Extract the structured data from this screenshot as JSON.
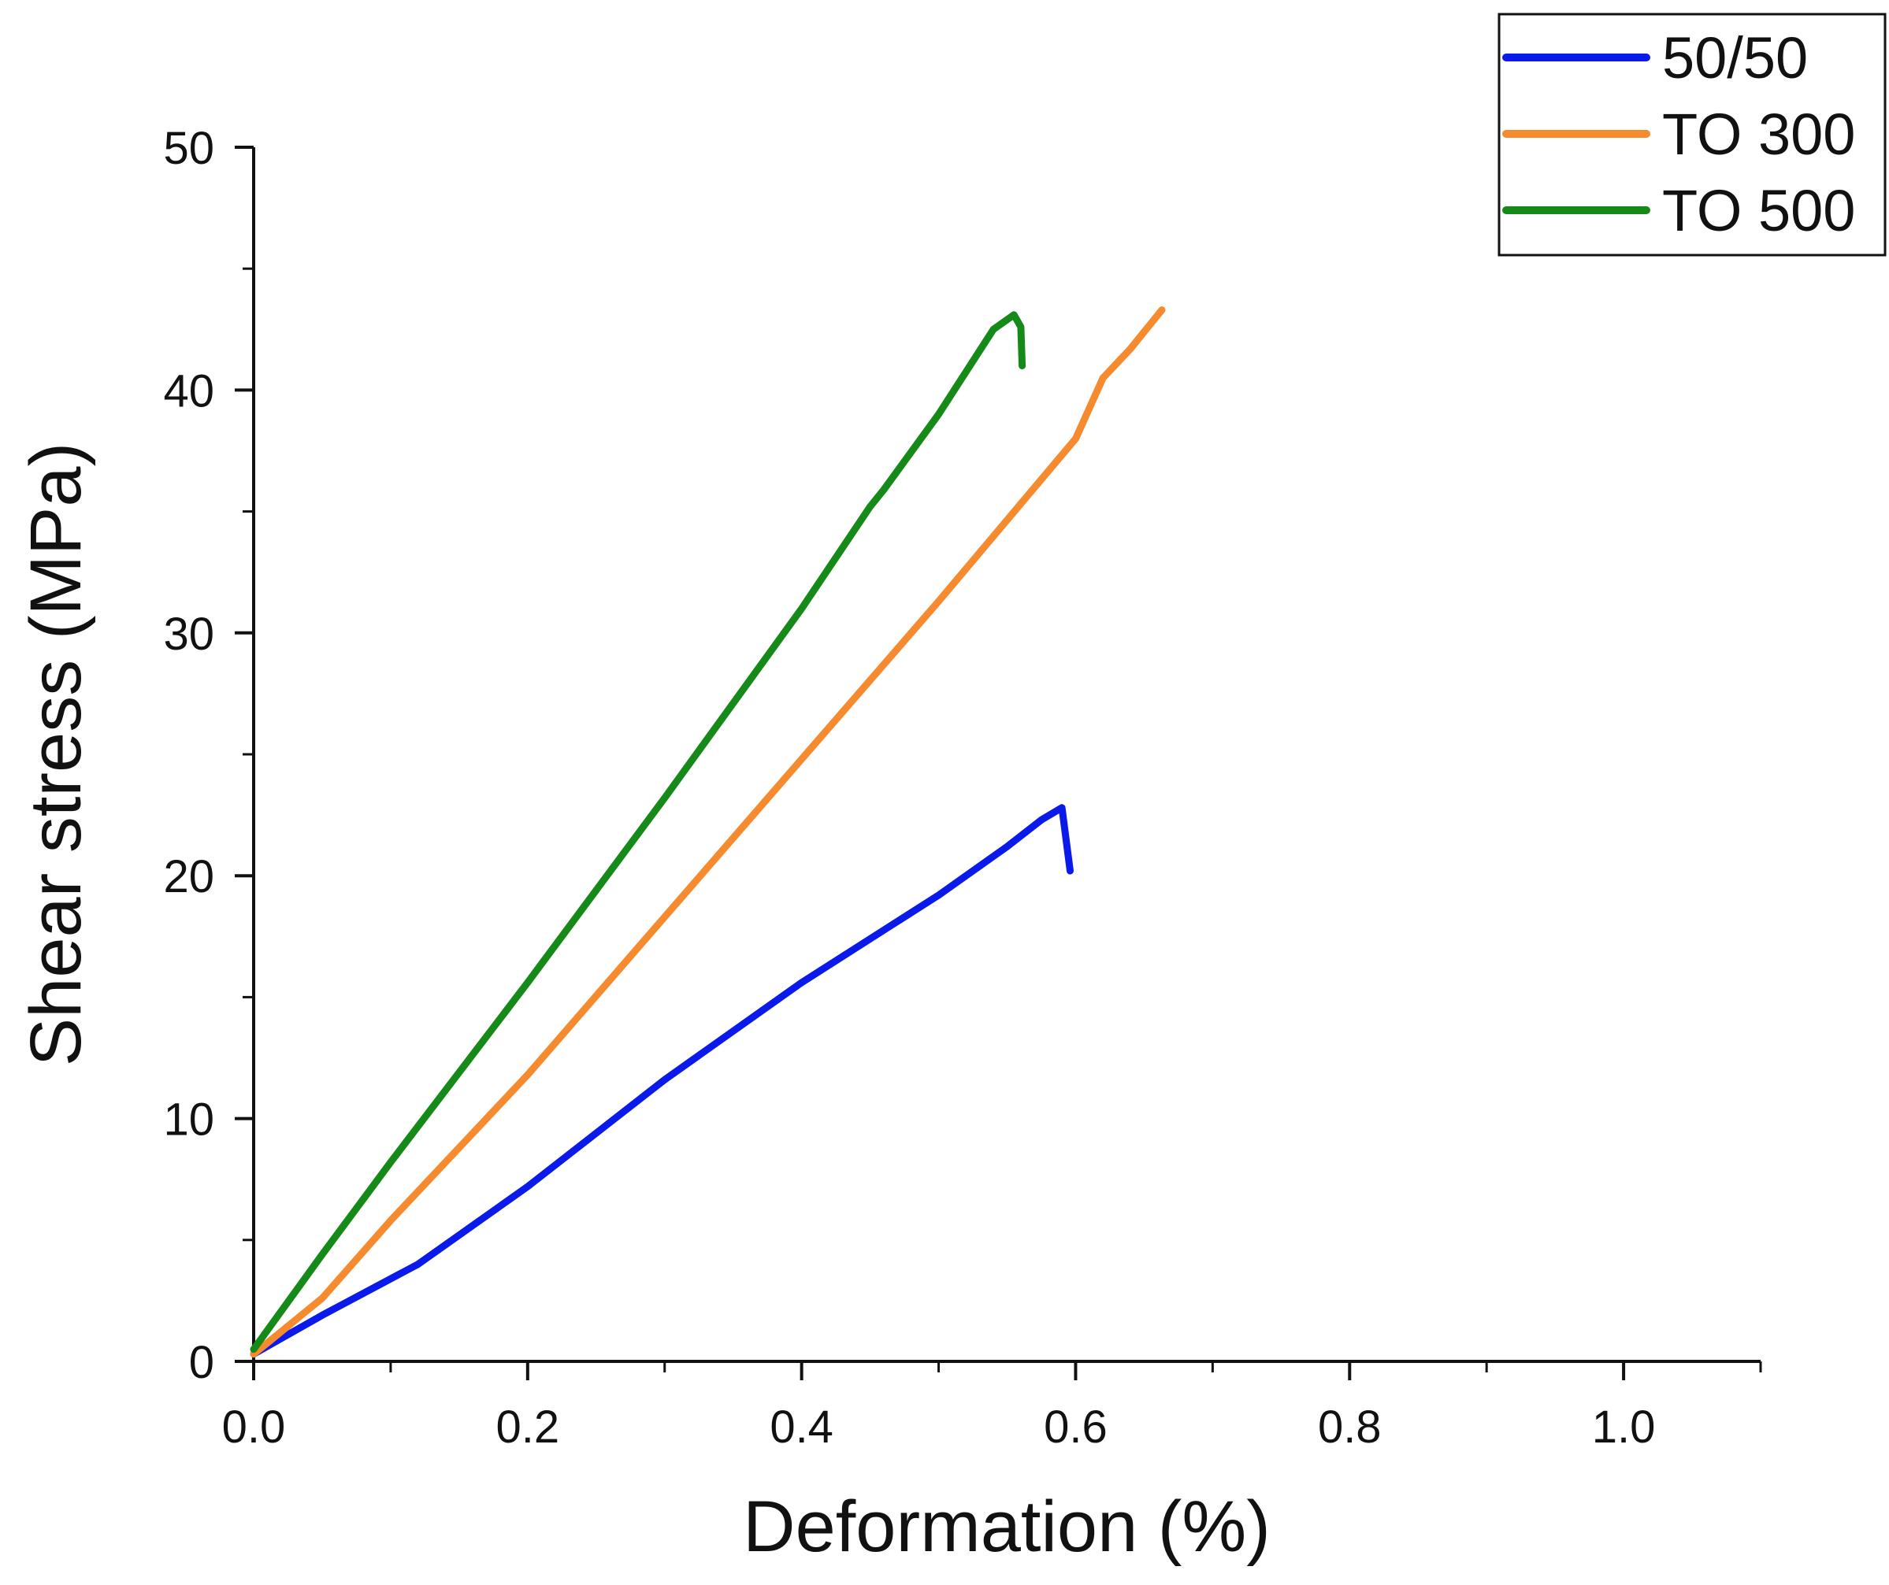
{
  "chart_data": {
    "type": "line",
    "title": "",
    "xlabel": "Deformation (%)",
    "ylabel": "Shear stress (MPa)",
    "xlim": [
      0.0,
      1.1
    ],
    "ylim": [
      0,
      50
    ],
    "xticks": [
      0.0,
      0.2,
      0.4,
      0.6,
      0.8,
      1.0
    ],
    "xtick_labels": [
      "0.0",
      "0.2",
      "0.4",
      "0.6",
      "0.8",
      "1.0"
    ],
    "yticks": [
      0,
      10,
      20,
      30,
      40,
      50
    ],
    "ytick_labels": [
      "0",
      "10",
      "20",
      "30",
      "40",
      "50"
    ],
    "grid": false,
    "legend_position": "top-right",
    "series": [
      {
        "name": "50/50",
        "color": "#0a1aeb",
        "points": [
          [
            0.0,
            0.3
          ],
          [
            0.05,
            1.9
          ],
          [
            0.1,
            3.4
          ],
          [
            0.12,
            4.0
          ],
          [
            0.2,
            7.2
          ],
          [
            0.3,
            11.6
          ],
          [
            0.4,
            15.6
          ],
          [
            0.5,
            19.2
          ],
          [
            0.55,
            21.2
          ],
          [
            0.575,
            22.3
          ],
          [
            0.59,
            22.8
          ],
          [
            0.593,
            21.5
          ],
          [
            0.596,
            20.2
          ]
        ]
      },
      {
        "name": "TO 300",
        "color": "#f58a2f",
        "points": [
          [
            0.0,
            0.3
          ],
          [
            0.05,
            2.6
          ],
          [
            0.1,
            5.8
          ],
          [
            0.2,
            11.8
          ],
          [
            0.3,
            18.3
          ],
          [
            0.4,
            24.8
          ],
          [
            0.5,
            31.3
          ],
          [
            0.6,
            38.0
          ],
          [
            0.62,
            40.5
          ],
          [
            0.64,
            41.7
          ],
          [
            0.663,
            43.3
          ]
        ]
      },
      {
        "name": "TO 500",
        "color": "#168a18",
        "points": [
          [
            0.0,
            0.5
          ],
          [
            0.05,
            4.4
          ],
          [
            0.1,
            8.2
          ],
          [
            0.2,
            15.6
          ],
          [
            0.3,
            23.2
          ],
          [
            0.4,
            31.0
          ],
          [
            0.45,
            35.2
          ],
          [
            0.46,
            35.9
          ],
          [
            0.5,
            39.0
          ],
          [
            0.54,
            42.5
          ],
          [
            0.555,
            43.1
          ],
          [
            0.56,
            42.6
          ],
          [
            0.561,
            41.0
          ]
        ]
      }
    ]
  }
}
